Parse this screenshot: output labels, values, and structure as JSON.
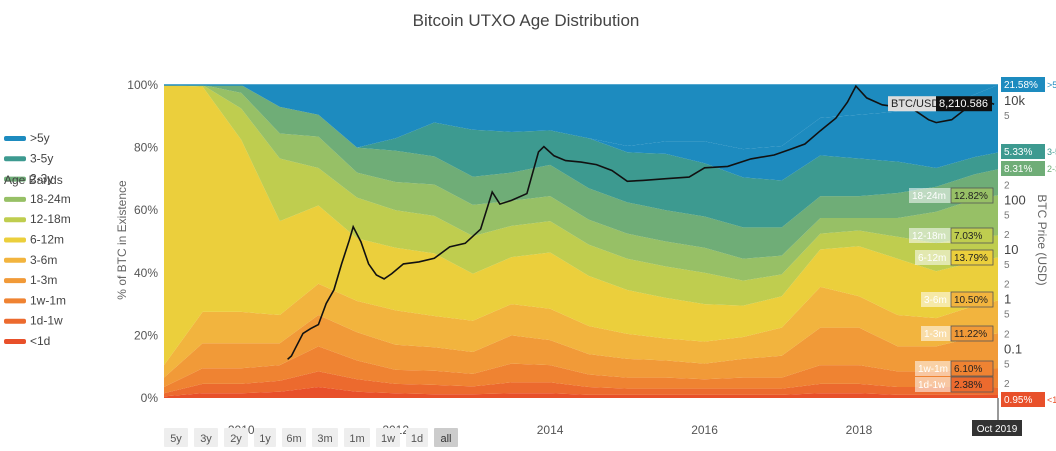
{
  "chart_data": {
    "type": "area",
    "title": "Bitcoin UTXO Age Distribution",
    "left_axis": {
      "label": "% of BTC in Existence",
      "ticks": [
        "0%",
        "20%",
        "40%",
        "60%",
        "80%",
        "100%"
      ],
      "tick_values": [
        0,
        20,
        40,
        60,
        80,
        100
      ],
      "ylim": [
        0,
        100
      ]
    },
    "right_axis": {
      "label": "BTC Price (USD)",
      "scale": "log",
      "ylim": [
        0.01,
        20000
      ],
      "major_ticks": [
        {
          "value": 0.1,
          "label": "0.1"
        },
        {
          "value": 1,
          "label": "1"
        },
        {
          "value": 10,
          "label": "10"
        },
        {
          "value": 100,
          "label": "100"
        },
        {
          "value": 10000,
          "label": "10k"
        }
      ],
      "minor_ticks": [
        {
          "value": 0.02,
          "label": "2"
        },
        {
          "value": 0.05,
          "label": "5"
        },
        {
          "value": 0.2,
          "label": "2"
        },
        {
          "value": 0.5,
          "label": "5"
        },
        {
          "value": 2,
          "label": "2"
        },
        {
          "value": 5,
          "label": "5"
        },
        {
          "value": 20,
          "label": "2"
        },
        {
          "value": 50,
          "label": "5"
        },
        {
          "value": 200,
          "label": "2"
        },
        {
          "value": 20000,
          "label": "2"
        },
        {
          "value": 5000,
          "label": "5"
        }
      ]
    },
    "x_axis": {
      "range": [
        2009.0,
        2019.8
      ],
      "ticks": [
        "2010",
        "2012",
        "2014",
        "2016",
        "2018"
      ],
      "tick_values": [
        2010,
        2012,
        2014,
        2016,
        2018
      ],
      "cursor_label": "Oct 2019"
    },
    "legend_title": "Age Bands",
    "x": [
      2009.0,
      2009.5,
      2010.0,
      2010.5,
      2011.0,
      2011.5,
      2012.0,
      2012.5,
      2013.0,
      2013.5,
      2014.0,
      2014.5,
      2015.0,
      2015.5,
      2016.0,
      2016.5,
      2017.0,
      2017.5,
      2018.0,
      2018.5,
      2019.0,
      2019.5,
      2019.8
    ],
    "series": [
      {
        "name": "<1d",
        "color": "#e8502a",
        "values": [
          0.5,
          1.5,
          1.5,
          2,
          3.5,
          2,
          1.5,
          1.2,
          1.2,
          1.5,
          1.5,
          1,
          1,
          1,
          1,
          1,
          1,
          1.5,
          1.5,
          1,
          1,
          1,
          0.95
        ]
      },
      {
        "name": "1d-1w",
        "color": "#ec6a2e",
        "values": [
          1,
          3,
          3,
          3.5,
          5,
          4,
          3,
          3,
          2.5,
          3.5,
          3.5,
          2.5,
          2,
          2,
          2,
          2,
          2,
          3,
          3,
          2.5,
          2.5,
          2.5,
          2.38
        ]
      },
      {
        "name": "1w-1m",
        "color": "#ef8332",
        "values": [
          2,
          5,
          5,
          5,
          8,
          6,
          4.5,
          4.5,
          4,
          6,
          5.5,
          4,
          3.5,
          3.5,
          3,
          3.5,
          3.5,
          6,
          6,
          5,
          5,
          6,
          6.1
        ]
      },
      {
        "name": "1m-3m",
        "color": "#f19a38",
        "values": [
          3,
          8,
          8,
          7,
          10,
          9,
          8,
          7.5,
          7,
          9,
          8,
          6.5,
          6,
          5.5,
          5,
          6,
          7,
          12,
          12,
          8,
          8,
          10,
          11.22
        ]
      },
      {
        "name": "3m-6m",
        "color": "#f2b43e",
        "values": [
          4,
          10,
          10,
          9,
          10,
          10,
          11,
          10,
          10,
          10,
          10,
          9,
          8,
          7,
          7,
          7,
          9,
          13,
          10,
          10,
          9,
          10,
          10.5
        ]
      },
      {
        "name": "6m-12m",
        "color": "#ebcf3c",
        "values": [
          90,
          72,
          55,
          30,
          25,
          20,
          20,
          20,
          15,
          15,
          18,
          16,
          14,
          13,
          12,
          10,
          10,
          12,
          16,
          18,
          15,
          14,
          13.79
        ]
      },
      {
        "name": "12m-18m",
        "color": "#bfcd4f",
        "values": [
          0,
          1,
          10,
          20,
          12,
          13,
          12,
          12,
          12,
          10,
          10,
          10,
          10,
          10,
          10,
          8,
          7,
          5,
          5,
          7,
          9,
          8,
          7.03
        ]
      },
      {
        "name": "18m-24m",
        "color": "#97c066",
        "values": [
          0,
          0,
          5,
          8,
          10,
          8,
          9,
          10,
          10,
          8,
          8,
          8,
          8,
          8,
          8,
          7,
          6,
          5,
          4,
          6,
          10,
          12,
          12.82
        ]
      },
      {
        "name": "2y-3y",
        "color": "#6fad77",
        "values": [
          0,
          0,
          3,
          8.5,
          7,
          8,
          10,
          9,
          9,
          9,
          10,
          10,
          10,
          10,
          10,
          10,
          9,
          7,
          7,
          8,
          8,
          8,
          8.31
        ]
      },
      {
        "name": "3y-5y",
        "color": "#3d9a90",
        "values": [
          0,
          0,
          0,
          0,
          0,
          0,
          4,
          10.8,
          15,
          13,
          11,
          16,
          16,
          18,
          17,
          16,
          15,
          13,
          12,
          10,
          6,
          5.5,
          5.33
        ]
      },
      {
        "name": ">5y",
        "color": "#1d8bbf",
        "values": [
          0,
          0,
          0,
          0,
          0,
          0,
          0,
          0,
          0,
          0,
          0,
          0,
          2,
          4,
          7,
          9,
          11,
          12,
          14,
          16,
          18,
          20,
          21.58
        ]
      }
    ],
    "legend_visible": [
      ">5y",
      "3-5y",
      "2-3y",
      "18-24m",
      "12-18m",
      "6-12m",
      "3-6m",
      "1-3m",
      "1w-1m",
      "1d-1w",
      "<1d"
    ],
    "value_tags": [
      {
        "label": ">5y",
        "value": "21.58%"
      },
      {
        "label": "3-5y",
        "value": "5.33%"
      },
      {
        "label": "2-3y",
        "value": "8.31%"
      },
      {
        "label": "18-24m",
        "value": "12.82%"
      },
      {
        "label": "12-18m",
        "value": "7.03%"
      },
      {
        "label": "6-12m",
        "value": "13.79%"
      },
      {
        "label": "3-6m",
        "value": "10.50%"
      },
      {
        "label": "1-3m",
        "value": "11.22%"
      },
      {
        "label": "1w-1m",
        "value": "6.10%"
      },
      {
        "label": "1d-1w",
        "value": "2.38%"
      },
      {
        "label": "<1d",
        "value": "0.95%"
      }
    ],
    "price_series": {
      "name": "BTC/USD",
      "current_value": "8,210.586",
      "color": "#111111",
      "x": [
        2010.6,
        2010.65,
        2010.7,
        2010.8,
        2010.9,
        2011.0,
        2011.1,
        2011.2,
        2011.3,
        2011.4,
        2011.45,
        2011.55,
        2011.65,
        2011.75,
        2011.85,
        2011.95,
        2012.1,
        2012.3,
        2012.5,
        2012.7,
        2012.9,
        2013.1,
        2013.25,
        2013.35,
        2013.5,
        2013.7,
        2013.85,
        2013.92,
        2014.05,
        2014.2,
        2014.4,
        2014.6,
        2014.8,
        2015.0,
        2015.2,
        2015.5,
        2015.8,
        2016.0,
        2016.3,
        2016.6,
        2016.9,
        2017.1,
        2017.3,
        2017.5,
        2017.7,
        2017.85,
        2017.96,
        2018.1,
        2018.3,
        2018.5,
        2018.7,
        2018.9,
        2019.0,
        2019.2,
        2019.45,
        2019.6,
        2019.75
      ],
      "values": [
        0.06,
        0.07,
        0.1,
        0.2,
        0.25,
        0.3,
        0.8,
        1.5,
        5,
        15,
        28,
        14,
        5,
        3,
        2.5,
        3.2,
        5,
        5.5,
        6.5,
        11,
        13,
        25,
        140,
        80,
        95,
        130,
        900,
        1150,
        750,
        600,
        560,
        500,
        380,
        230,
        240,
        260,
        280,
        430,
        460,
        650,
        780,
        1000,
        1300,
        2400,
        4300,
        9000,
        19000,
        11000,
        8000,
        7200,
        6500,
        4000,
        3500,
        4000,
        8000,
        10000,
        8210
      ]
    }
  },
  "range_buttons": [
    {
      "label": "5y",
      "active": false
    },
    {
      "label": "3y",
      "active": false
    },
    {
      "label": "2y",
      "active": false
    },
    {
      "label": "1y",
      "active": false
    },
    {
      "label": "6m",
      "active": false
    },
    {
      "label": "3m",
      "active": false
    },
    {
      "label": "1m",
      "active": false
    },
    {
      "label": "1w",
      "active": false
    },
    {
      "label": "1d",
      "active": false
    },
    {
      "label": "all",
      "active": true
    }
  ]
}
